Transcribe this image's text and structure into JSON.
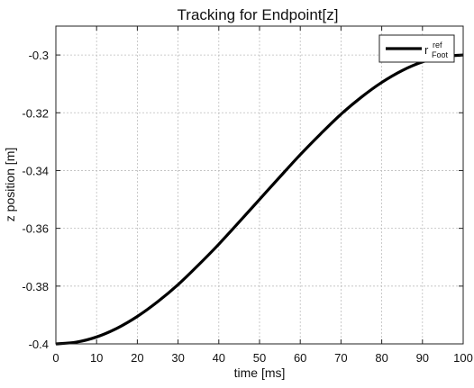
{
  "chart_data": {
    "type": "line",
    "title": "Tracking for Endpoint[z]",
    "xlabel": "time [ms]",
    "ylabel": "z position [m]",
    "xlim": [
      0,
      100
    ],
    "ylim": [
      -0.4,
      -0.29
    ],
    "xticks": [
      0,
      10,
      20,
      30,
      40,
      50,
      60,
      70,
      80,
      90,
      100
    ],
    "xtick_labels": [
      "0",
      "10",
      "20",
      "30",
      "40",
      "50",
      "60",
      "70",
      "80",
      "90",
      "100"
    ],
    "yticks": [
      -0.4,
      -0.38,
      -0.36,
      -0.34,
      -0.32,
      -0.3
    ],
    "ytick_labels": [
      "-0.4",
      "-0.38",
      "-0.36",
      "-0.34",
      "-0.32",
      "-0.3"
    ],
    "grid": true,
    "legend_position": "top-right",
    "series": [
      {
        "name": "r",
        "name_superscript": "ref",
        "name_subscript": "Foot",
        "color": "#000000",
        "x": [
          0,
          5,
          10,
          15,
          20,
          25,
          30,
          35,
          40,
          45,
          50,
          55,
          60,
          65,
          70,
          75,
          80,
          85,
          90,
          95,
          100
        ],
        "y": [
          -0.4,
          -0.3994,
          -0.3976,
          -0.3946,
          -0.3905,
          -0.3854,
          -0.3795,
          -0.3727,
          -0.3655,
          -0.3578,
          -0.35,
          -0.3422,
          -0.3345,
          -0.3273,
          -0.3205,
          -0.3146,
          -0.3095,
          -0.3054,
          -0.3024,
          -0.3006,
          -0.3
        ]
      }
    ]
  }
}
